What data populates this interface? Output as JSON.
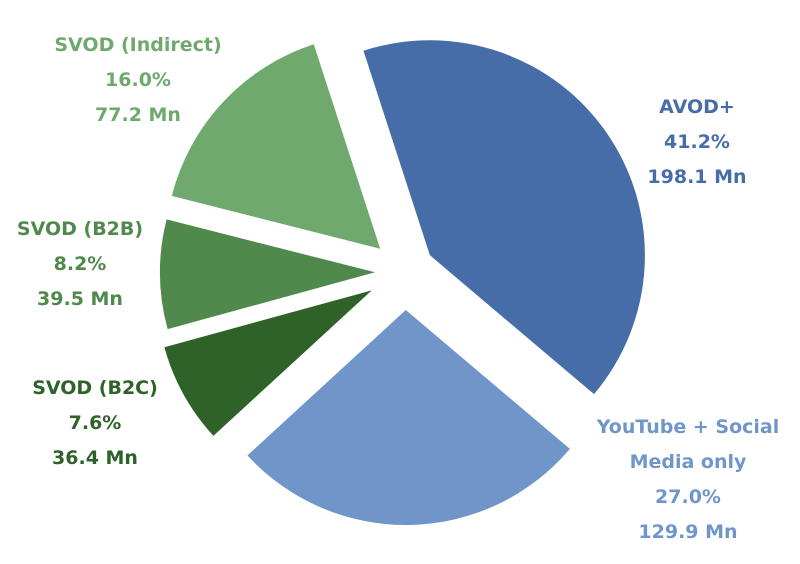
{
  "chart_data": {
    "type": "pie",
    "exploded": true,
    "slices": [
      {
        "name": "AVOD+",
        "name_lines": [
          "AVOD+"
        ],
        "percent": "41.2%",
        "value": 198.1,
        "value_label": "198.1 Mn",
        "color": "#466da8"
      },
      {
        "name": "YouTube + Social Media only",
        "name_lines": [
          "YouTube + Social",
          "Media only"
        ],
        "percent": "27.0%",
        "value": 129.9,
        "value_label": "129.9 Mn",
        "color": "#7096c9"
      },
      {
        "name": "SVOD (B2C)",
        "name_lines": [
          "SVOD (B2C)"
        ],
        "percent": "7.6%",
        "value": 36.4,
        "value_label": "36.4 Mn",
        "color": "#2f6229"
      },
      {
        "name": "SVOD (B2B)",
        "name_lines": [
          "SVOD (B2B)"
        ],
        "percent": "8.2%",
        "value": 39.5,
        "value_label": "39.5 Mn",
        "color": "#4f8a4c"
      },
      {
        "name": "SVOD (Indirect)",
        "name_lines": [
          "SVOD (Indirect)"
        ],
        "percent": "16.0%",
        "value": 77.2,
        "value_label": "77.2 Mn",
        "color": "#6fa96d"
      }
    ]
  }
}
